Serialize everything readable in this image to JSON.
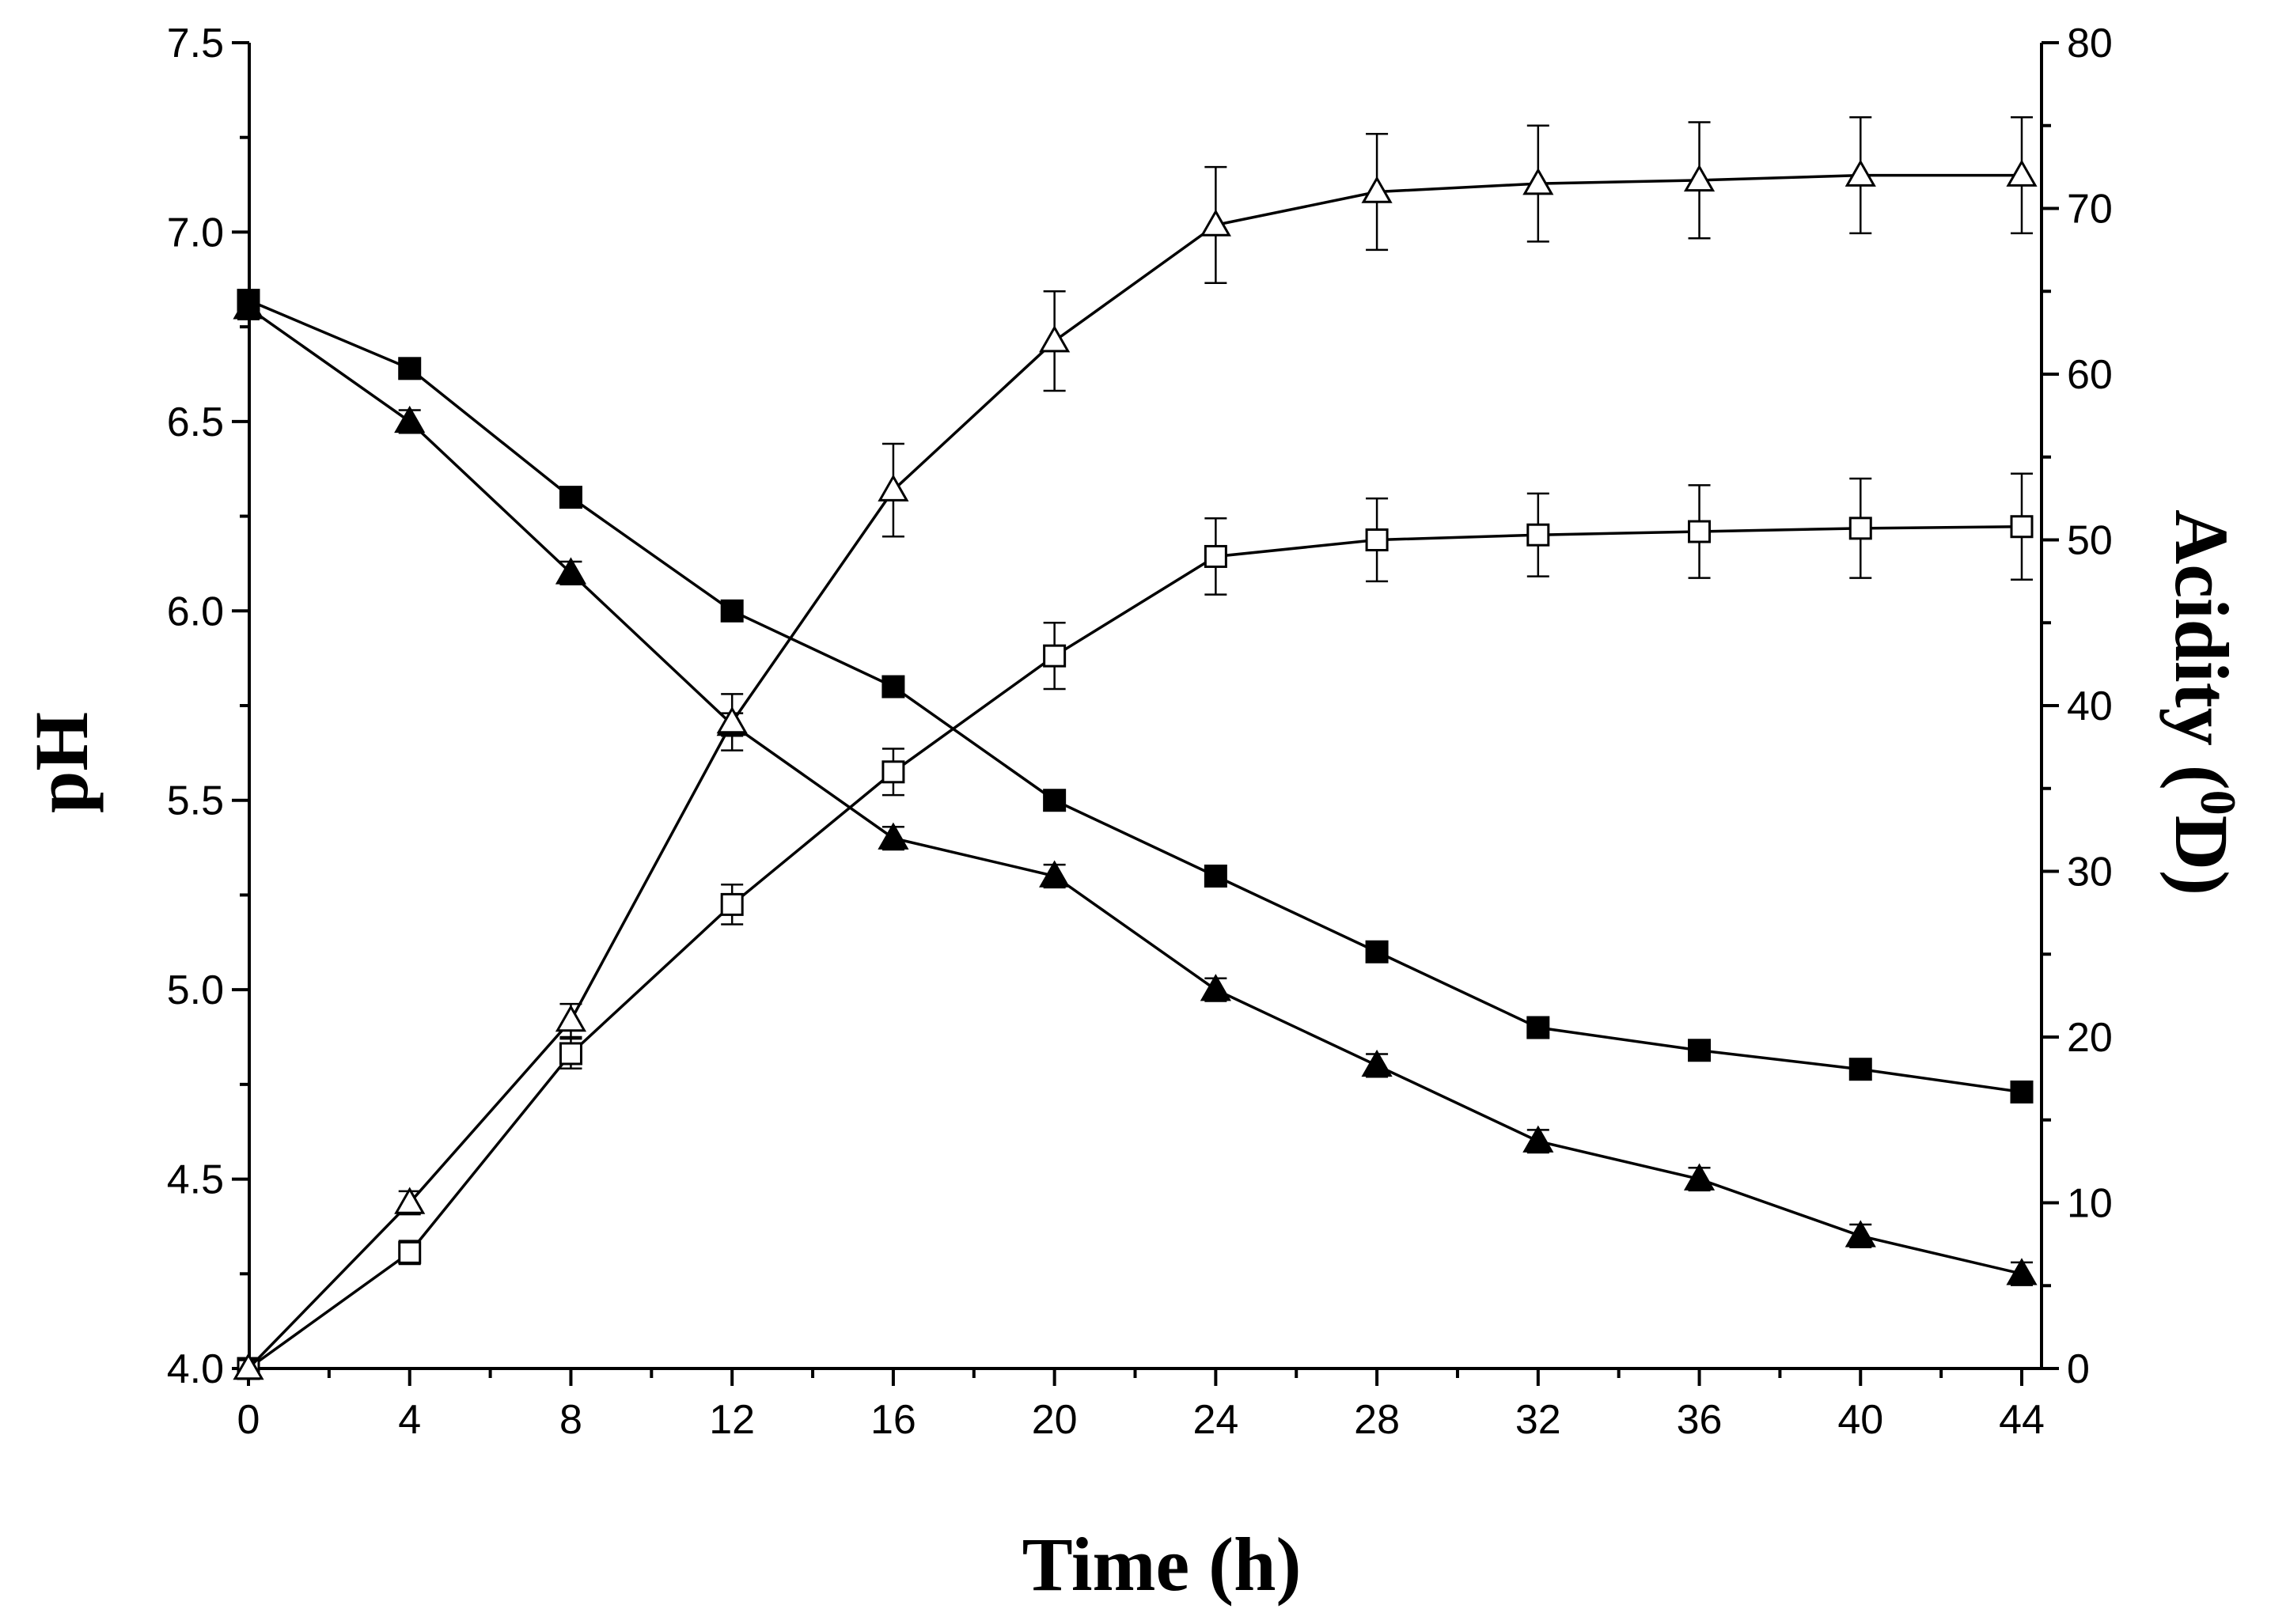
{
  "chart_data": {
    "type": "line",
    "xlabel": "Time (h)",
    "ylabel_left": "pH",
    "ylabel_right_prefix": "Acidity (",
    "ylabel_right_sup": "0",
    "ylabel_right_suffix": "D)",
    "xlim": [
      0,
      44
    ],
    "ylim_left": [
      4.0,
      7.5
    ],
    "ylim_right": [
      0,
      80
    ],
    "x": [
      0,
      4,
      8,
      12,
      16,
      20,
      24,
      28,
      32,
      36,
      40,
      44
    ],
    "xticks": [
      "0",
      "4",
      "8",
      "12",
      "16",
      "20",
      "24",
      "28",
      "32",
      "36",
      "40",
      "44"
    ],
    "yticks_left": [
      "4.0",
      "4.5",
      "5.0",
      "5.5",
      "6.0",
      "6.5",
      "7.0",
      "7.5"
    ],
    "yticks_right": [
      "0",
      "10",
      "20",
      "30",
      "40",
      "50",
      "60",
      "70",
      "80"
    ],
    "grid": false,
    "series": [
      {
        "name": "pH (filled square)",
        "axis": "left",
        "marker": "square-filled",
        "values": [
          6.82,
          6.64,
          6.3,
          6.0,
          5.8,
          5.5,
          5.3,
          5.1,
          4.9,
          4.84,
          4.79,
          4.73
        ],
        "errors": [
          0.02,
          0.02,
          0.02,
          0.02,
          0.02,
          0.02,
          0.02,
          0.02,
          0.02,
          0.02,
          0.02,
          0.02
        ]
      },
      {
        "name": "pH (filled triangle)",
        "axis": "left",
        "marker": "triangle-filled",
        "values": [
          6.8,
          6.5,
          6.1,
          5.7,
          5.4,
          5.3,
          5.0,
          4.8,
          4.6,
          4.5,
          4.35,
          4.25
        ],
        "errors": [
          0.03,
          0.03,
          0.03,
          0.03,
          0.03,
          0.03,
          0.03,
          0.03,
          0.03,
          0.03,
          0.03,
          0.03
        ]
      },
      {
        "name": "Acidity (open square)",
        "axis": "right",
        "marker": "square-open",
        "values": [
          0,
          7,
          19,
          28,
          36,
          43,
          49,
          50,
          50.3,
          50.5,
          50.7,
          50.8
        ],
        "errors": [
          0.5,
          0.7,
          0.9,
          1.2,
          1.4,
          2.0,
          2.3,
          2.5,
          2.5,
          2.8,
          3.0,
          3.2
        ]
      },
      {
        "name": "Acidity (open triangle)",
        "axis": "right",
        "marker": "triangle-open",
        "values": [
          0,
          10,
          21,
          39,
          53,
          62,
          69,
          71,
          71.5,
          71.7,
          72,
          72
        ],
        "errors": [
          0.5,
          0.7,
          1.0,
          1.7,
          2.8,
          3.0,
          3.5,
          3.5,
          3.5,
          3.5,
          3.5,
          3.5
        ]
      }
    ]
  }
}
